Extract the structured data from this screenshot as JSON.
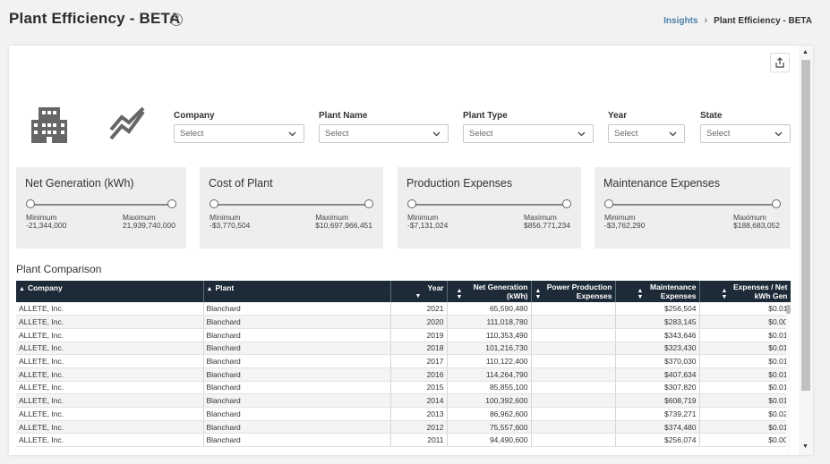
{
  "page": {
    "title": "Plant Efficiency - BETA",
    "help": "?"
  },
  "breadcrumb": {
    "link": "Insights",
    "separator": "›",
    "current": "Plant Efficiency - BETA"
  },
  "filters": [
    {
      "label": "Company",
      "value": "Select"
    },
    {
      "label": "Plant Name",
      "value": "Select"
    },
    {
      "label": "Plant Type",
      "value": "Select"
    },
    {
      "label": "Year",
      "value": "Select"
    },
    {
      "label": "State",
      "value": "Select"
    }
  ],
  "metrics": [
    {
      "title": "Net Generation (kWh)",
      "min_label": "Minimum",
      "min_value": "-21,344,000",
      "max_label": "Maximum",
      "max_value": "21,939,740,000"
    },
    {
      "title": "Cost of Plant",
      "min_label": "Minimum",
      "min_value": "-$3,770,504",
      "max_label": "Maximum",
      "max_value": "$10,697,966,451"
    },
    {
      "title": "Production Expenses",
      "min_label": "Minimum",
      "min_value": "-$7,131,024",
      "max_label": "Maximum",
      "max_value": "$856,771,234"
    },
    {
      "title": "Maintenance Expenses",
      "min_label": "Minimum",
      "min_value": "-$3,762,290",
      "max_label": "Maximum",
      "max_value": "$188,683,052"
    }
  ],
  "comparison": {
    "title": "Plant Comparison",
    "headers": {
      "company": "Company",
      "plant": "Plant",
      "year": "Year",
      "net_gen_1": "Net Generation",
      "net_gen_2": "(kWh)",
      "power_1": "Power Production",
      "power_2": "Expenses",
      "maint_1": "Maintenance",
      "maint_2": "Expenses",
      "exp_1": "Expenses / Net",
      "exp_2": "kWh Gen"
    },
    "rows": [
      {
        "company": "ALLETE, Inc.",
        "plant": "Blanchard",
        "year": "2021",
        "net_gen": "65,590,480",
        "power": "",
        "maint": "$256,504",
        "exp": "$0.01"
      },
      {
        "company": "ALLETE, Inc.",
        "plant": "Blanchard",
        "year": "2020",
        "net_gen": "111,018,780",
        "power": "",
        "maint": "$283,145",
        "exp": "$0.00"
      },
      {
        "company": "ALLETE, Inc.",
        "plant": "Blanchard",
        "year": "2019",
        "net_gen": "110,353,490",
        "power": "",
        "maint": "$343,646",
        "exp": "$0.01"
      },
      {
        "company": "ALLETE, Inc.",
        "plant": "Blanchard",
        "year": "2018",
        "net_gen": "101,216,730",
        "power": "",
        "maint": "$323,430",
        "exp": "$0.01"
      },
      {
        "company": "ALLETE, Inc.",
        "plant": "Blanchard",
        "year": "2017",
        "net_gen": "110,122,400",
        "power": "",
        "maint": "$370,030",
        "exp": "$0.01"
      },
      {
        "company": "ALLETE, Inc.",
        "plant": "Blanchard",
        "year": "2016",
        "net_gen": "114,264,790",
        "power": "",
        "maint": "$407,634",
        "exp": "$0.01"
      },
      {
        "company": "ALLETE, Inc.",
        "plant": "Blanchard",
        "year": "2015",
        "net_gen": "85,855,100",
        "power": "",
        "maint": "$307,820",
        "exp": "$0.01"
      },
      {
        "company": "ALLETE, Inc.",
        "plant": "Blanchard",
        "year": "2014",
        "net_gen": "100,392,600",
        "power": "",
        "maint": "$608,719",
        "exp": "$0.01"
      },
      {
        "company": "ALLETE, Inc.",
        "plant": "Blanchard",
        "year": "2013",
        "net_gen": "86,962,600",
        "power": "",
        "maint": "$739,271",
        "exp": "$0.02"
      },
      {
        "company": "ALLETE, Inc.",
        "plant": "Blanchard",
        "year": "2012",
        "net_gen": "75,557,600",
        "power": "",
        "maint": "$374,480",
        "exp": "$0.01"
      },
      {
        "company": "ALLETE, Inc.",
        "plant": "Blanchard",
        "year": "2011",
        "net_gen": "94,490,600",
        "power": "",
        "maint": "$256,074",
        "exp": "$0.00"
      }
    ]
  },
  "colors": {
    "header_bg": "#1d2b38",
    "link": "#4a7fa7",
    "card_bg": "#eeeeee"
  },
  "icons": [
    "help-icon",
    "share-icon",
    "building-icon",
    "line-chart-icon",
    "chevron-down-icon",
    "sort-icon"
  ]
}
